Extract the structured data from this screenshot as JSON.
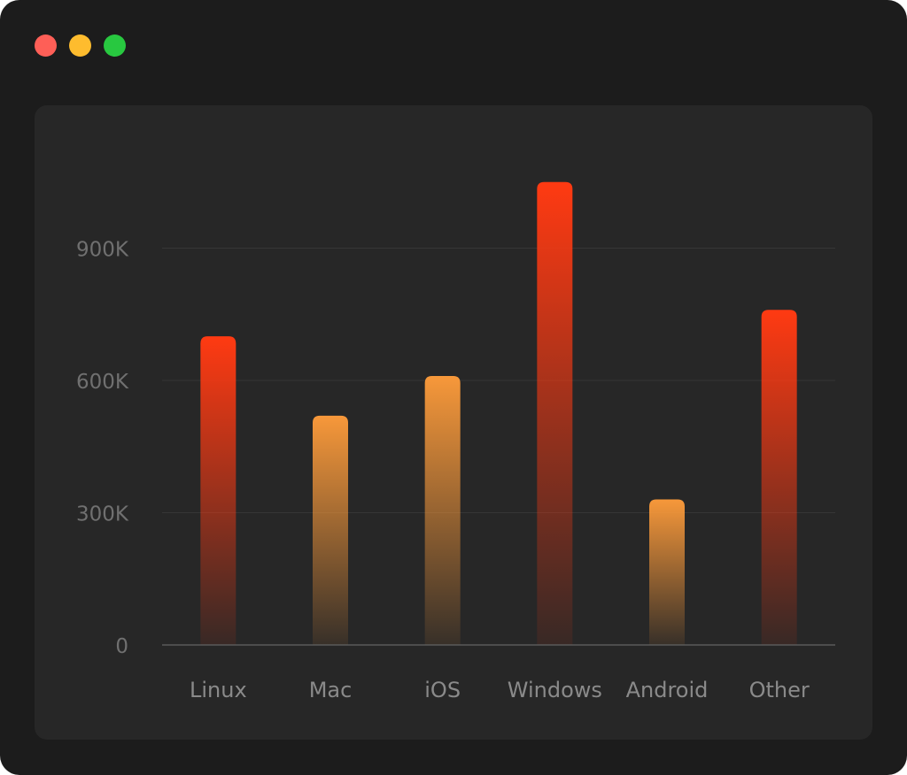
{
  "window": {
    "controls": [
      {
        "name": "close",
        "color": "#fe5f57"
      },
      {
        "name": "minimize",
        "color": "#febc2e"
      },
      {
        "name": "maximize",
        "color": "#28c840"
      }
    ]
  },
  "chart_data": {
    "type": "bar",
    "title": "",
    "xlabel": "",
    "ylabel": "",
    "categories": [
      "Linux",
      "Mac",
      "iOS",
      "Windows",
      "Android",
      "Other"
    ],
    "values": [
      700000,
      520000,
      610000,
      1050000,
      330000,
      760000
    ],
    "colors": [
      "#ff3a12",
      "#f7983a",
      "#f7983a",
      "#ff3a12",
      "#f7983a",
      "#ff3a12"
    ],
    "ylim": [
      0,
      1050000
    ],
    "yticks": [
      0,
      300000,
      600000,
      900000
    ],
    "ytick_labels": [
      "0",
      "300K",
      "600K",
      "900K"
    ],
    "grid": true,
    "legend": "none"
  }
}
